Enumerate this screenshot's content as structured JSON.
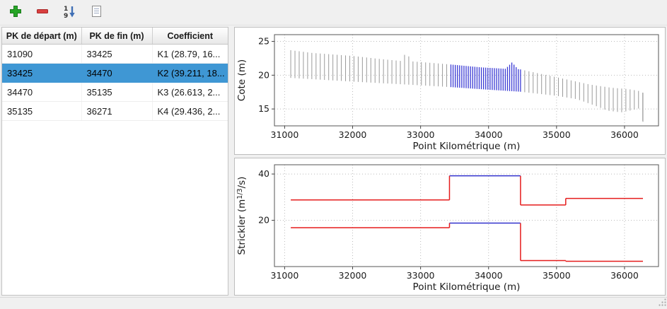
{
  "toolbar": {
    "buttons": [
      {
        "name": "add",
        "icon": "plus-icon",
        "color": "#27a527"
      },
      {
        "name": "remove",
        "icon": "minus-icon",
        "color": "#d94040"
      },
      {
        "name": "sort",
        "icon": "sort-numeric-icon",
        "color": "#3f6fb5"
      },
      {
        "name": "report",
        "icon": "page-icon",
        "color": "#8a8a8a"
      }
    ]
  },
  "table": {
    "headers": [
      "PK de départ (m)",
      "PK de fin (m)",
      "Coefficient"
    ],
    "selection_color": "#3f97d4",
    "rows": [
      {
        "pk_start": "31090",
        "pk_end": "33425",
        "coefficient": "K1 (28.79, 16...",
        "selected": false
      },
      {
        "pk_start": "33425",
        "pk_end": "34470",
        "coefficient": "K2 (39.211, 18...",
        "selected": true
      },
      {
        "pk_start": "34470",
        "pk_end": "35135",
        "coefficient": "K3 (26.613, 2...",
        "selected": false
      },
      {
        "pk_start": "35135",
        "pk_end": "36271",
        "coefficient": "K4 (29.436, 2...",
        "selected": false
      }
    ]
  },
  "chart_data": [
    {
      "id": "cote",
      "type": "sections",
      "title": "",
      "xlabel": "Point Kilométrique (m)",
      "ylabel": "Cote (m)",
      "xlim": [
        30850,
        36500
      ],
      "ylim": [
        12.5,
        26
      ],
      "xticks": [
        31000,
        32000,
        33000,
        34000,
        35000,
        36000
      ],
      "yticks": [
        15,
        20,
        25
      ],
      "grid": "dotted",
      "section_start": 31090,
      "section_end": 36271,
      "section_step": 62,
      "section_step_highlight": 32,
      "highlight_range": [
        33425,
        34470
      ],
      "line_color": "#9a9a9a",
      "highlight_color": "#3a3ad4",
      "top_envelope": [
        [
          31090,
          23.7
        ],
        [
          31400,
          23.3
        ],
        [
          32000,
          22.85
        ],
        [
          32400,
          22.4
        ],
        [
          32720,
          22.1
        ],
        [
          32790,
          23.55
        ],
        [
          32860,
          22.05
        ],
        [
          33000,
          21.95
        ],
        [
          33425,
          21.6
        ],
        [
          33900,
          21.15
        ],
        [
          34250,
          20.95
        ],
        [
          34345,
          21.9
        ],
        [
          34430,
          20.9
        ],
        [
          34470,
          20.85
        ],
        [
          35000,
          19.7
        ],
        [
          35500,
          18.6
        ],
        [
          35800,
          18.15
        ],
        [
          36050,
          17.95
        ],
        [
          36200,
          17.7
        ],
        [
          36271,
          17.4
        ]
      ],
      "bottom_envelope": [
        [
          31090,
          19.6
        ],
        [
          32000,
          19.05
        ],
        [
          33000,
          18.5
        ],
        [
          33425,
          18.25
        ],
        [
          34000,
          17.85
        ],
        [
          34470,
          17.55
        ],
        [
          35000,
          16.95
        ],
        [
          35300,
          16.45
        ],
        [
          35550,
          15.55
        ],
        [
          35750,
          14.75
        ],
        [
          35950,
          14.5
        ],
        [
          36100,
          14.8
        ],
        [
          36220,
          15.1
        ],
        [
          36271,
          13.1
        ]
      ]
    },
    {
      "id": "strickler",
      "type": "steps",
      "title": "",
      "xlabel": "Point Kilométrique (m)",
      "ylabel": "Strickler (m1/3/s)",
      "ylabel_segments": [
        {
          "t": "Strickler (m"
        },
        {
          "t": "1/3",
          "sup": true
        },
        {
          "t": "/s)"
        }
      ],
      "xlim": [
        30850,
        36500
      ],
      "ylim": [
        0,
        44
      ],
      "xticks": [
        31000,
        32000,
        33000,
        34000,
        35000,
        36000
      ],
      "yticks": [
        20,
        40
      ],
      "grid": "dotted",
      "normal_color": "#e51c1c",
      "selected_color": "#3232cd",
      "segments": [
        {
          "from": 31090,
          "to": 33425,
          "major": 28.79,
          "minor": 16.8,
          "selected": false
        },
        {
          "from": 33425,
          "to": 34470,
          "major": 39.211,
          "minor": 18.8,
          "selected": true
        },
        {
          "from": 34470,
          "to": 35135,
          "major": 26.613,
          "minor": 2.6,
          "selected": false
        },
        {
          "from": 35135,
          "to": 36271,
          "major": 29.436,
          "minor": 2.3,
          "selected": false
        }
      ]
    }
  ]
}
